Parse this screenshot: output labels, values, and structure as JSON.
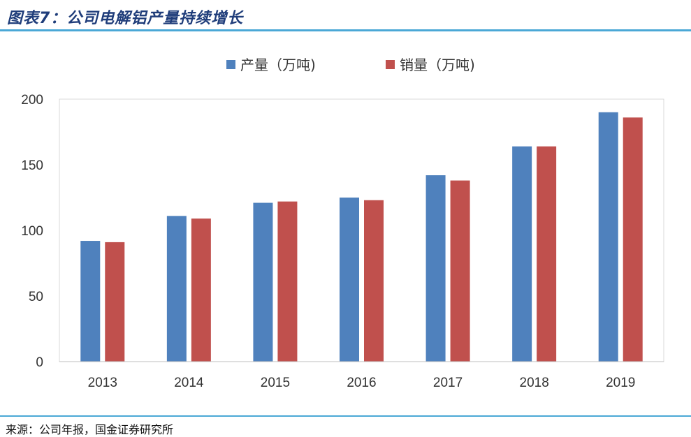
{
  "header": {
    "title": "图表7：公司电解铝产量持续增长"
  },
  "footer": {
    "source": "来源：公司年报，国金证券研究所"
  },
  "colors": {
    "accent": "#4aa8d6",
    "title": "#1f3d7a"
  },
  "chart_data": {
    "type": "bar",
    "title": "",
    "xlabel": "",
    "ylabel": "",
    "categories": [
      "2013",
      "2014",
      "2015",
      "2016",
      "2017",
      "2018",
      "2019"
    ],
    "series": [
      {
        "name": "产量（万吨)",
        "color": "#4f81bd",
        "values": [
          92,
          111,
          121,
          125,
          142,
          164,
          190
        ]
      },
      {
        "name": "销量（万吨)",
        "color": "#c0504d",
        "values": [
          91,
          109,
          122,
          123,
          138,
          164,
          186
        ]
      }
    ],
    "ylim": [
      0,
      200
    ],
    "yticks": [
      "0",
      "50",
      "100",
      "150",
      "200"
    ],
    "grid": false,
    "legend": "top-center"
  }
}
